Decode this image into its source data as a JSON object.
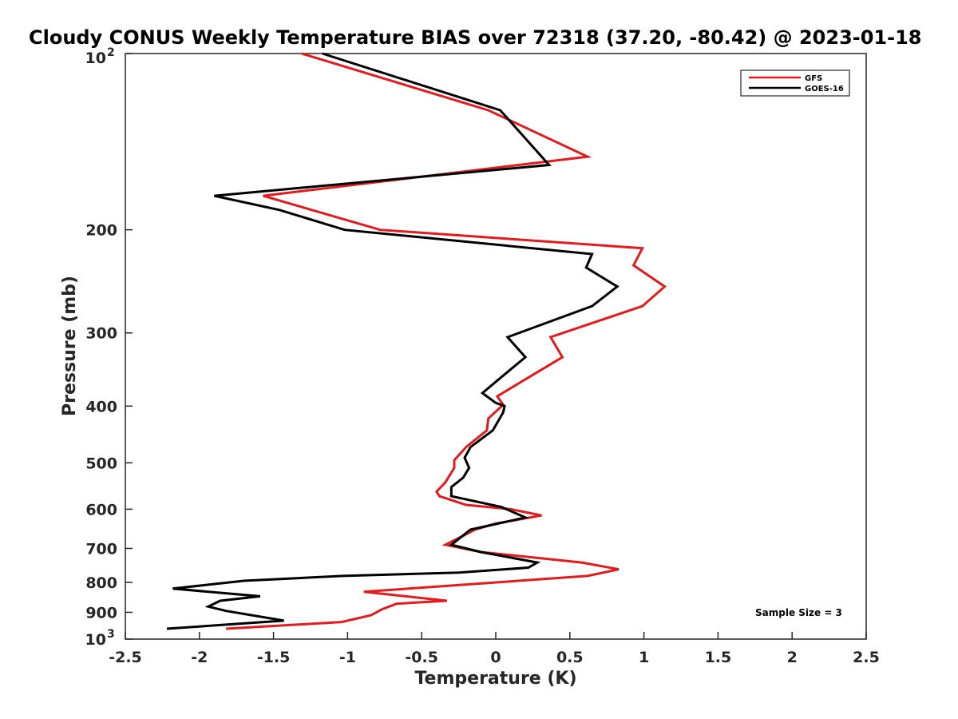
{
  "chart_data": {
    "type": "line",
    "title": "Cloudy CONUS Weekly Temperature BIAS over 72318 (37.20, -80.42) @ 2023-01-18",
    "xlabel": "Temperature (K)",
    "ylabel": "Pressure (mb)",
    "xlim": [
      -2.5,
      2.5
    ],
    "ylim": [
      100,
      1000
    ],
    "y_scale": "log",
    "y_reversed": true,
    "grid": false,
    "legend_position": "top-right",
    "x_ticks": [
      {
        "value": -2.5,
        "label": "-2.5"
      },
      {
        "value": -2,
        "label": "-2"
      },
      {
        "value": -1.5,
        "label": "-1.5"
      },
      {
        "value": -1,
        "label": "-1"
      },
      {
        "value": -0.5,
        "label": "-0.5"
      },
      {
        "value": 0,
        "label": "0"
      },
      {
        "value": 0.5,
        "label": "0.5"
      },
      {
        "value": 1,
        "label": "1"
      },
      {
        "value": 1.5,
        "label": "1.5"
      },
      {
        "value": 2,
        "label": "2"
      },
      {
        "value": 2.5,
        "label": "2.5"
      }
    ],
    "y_ticks": [
      {
        "value": 100,
        "base": "10",
        "exp": "2"
      },
      {
        "value": 200,
        "base": "200",
        "exp": ""
      },
      {
        "value": 300,
        "base": "300",
        "exp": ""
      },
      {
        "value": 400,
        "base": "400",
        "exp": ""
      },
      {
        "value": 500,
        "base": "500",
        "exp": ""
      },
      {
        "value": 600,
        "base": "600",
        "exp": ""
      },
      {
        "value": 700,
        "base": "700",
        "exp": ""
      },
      {
        "value": 800,
        "base": "800",
        "exp": ""
      },
      {
        "value": 900,
        "base": "900",
        "exp": ""
      },
      {
        "value": 1000,
        "base": "10",
        "exp": "3"
      }
    ],
    "annotation": "Sample Size = 3",
    "series": [
      {
        "name": "GFS",
        "color": "#e41a1c",
        "points": [
          [
            -1.31,
            100
          ],
          [
            -0.05,
            125
          ],
          [
            0.62,
            150
          ],
          [
            -1.57,
            175
          ],
          [
            -0.78,
            200
          ],
          [
            0.99,
            215
          ],
          [
            0.93,
            230
          ],
          [
            1.14,
            250
          ],
          [
            0.99,
            270
          ],
          [
            0.37,
            305
          ],
          [
            0.45,
            330
          ],
          [
            0.2,
            360
          ],
          [
            0.01,
            385
          ],
          [
            0.05,
            398
          ],
          [
            -0.05,
            420
          ],
          [
            -0.06,
            440
          ],
          [
            -0.2,
            470
          ],
          [
            -0.28,
            495
          ],
          [
            -0.28,
            510
          ],
          [
            -0.34,
            540
          ],
          [
            -0.4,
            560
          ],
          [
            -0.38,
            570
          ],
          [
            -0.2,
            590
          ],
          [
            0.1,
            600
          ],
          [
            0.31,
            615
          ],
          [
            0.0,
            635
          ],
          [
            -0.14,
            650
          ],
          [
            -0.24,
            670
          ],
          [
            -0.34,
            690
          ],
          [
            -0.1,
            710
          ],
          [
            0.58,
            740
          ],
          [
            0.83,
            760
          ],
          [
            0.62,
            780
          ],
          [
            -0.89,
            830
          ],
          [
            -0.33,
            860
          ],
          [
            -0.67,
            870
          ],
          [
            -0.77,
            890
          ],
          [
            -0.84,
            910
          ],
          [
            -1.04,
            935
          ],
          [
            -1.82,
            960
          ]
        ]
      },
      {
        "name": "GOES-16",
        "color": "#000000",
        "points": [
          [
            -1.17,
            100
          ],
          [
            0.03,
            125
          ],
          [
            0.36,
            155
          ],
          [
            -1.9,
            175
          ],
          [
            -1.46,
            185
          ],
          [
            -1.02,
            200
          ],
          [
            0.65,
            220
          ],
          [
            0.61,
            232
          ],
          [
            0.82,
            250
          ],
          [
            0.65,
            270
          ],
          [
            0.08,
            305
          ],
          [
            0.2,
            330
          ],
          [
            0.02,
            360
          ],
          [
            -0.09,
            380
          ],
          [
            0.0,
            395
          ],
          [
            0.06,
            400
          ],
          [
            0.05,
            410
          ],
          [
            -0.02,
            440
          ],
          [
            -0.17,
            470
          ],
          [
            -0.21,
            490
          ],
          [
            -0.18,
            510
          ],
          [
            -0.22,
            530
          ],
          [
            -0.3,
            550
          ],
          [
            -0.3,
            570
          ],
          [
            0.04,
            595
          ],
          [
            0.2,
            620
          ],
          [
            -0.17,
            650
          ],
          [
            -0.3,
            690
          ],
          [
            -0.1,
            710
          ],
          [
            0.28,
            740
          ],
          [
            0.22,
            755
          ],
          [
            -0.25,
            770
          ],
          [
            -1.03,
            780
          ],
          [
            -1.7,
            795
          ],
          [
            -2.18,
            820
          ],
          [
            -1.59,
            845
          ],
          [
            -1.86,
            860
          ],
          [
            -1.94,
            880
          ],
          [
            -1.82,
            895
          ],
          [
            -1.43,
            930
          ],
          [
            -2.22,
            960
          ]
        ]
      }
    ]
  }
}
